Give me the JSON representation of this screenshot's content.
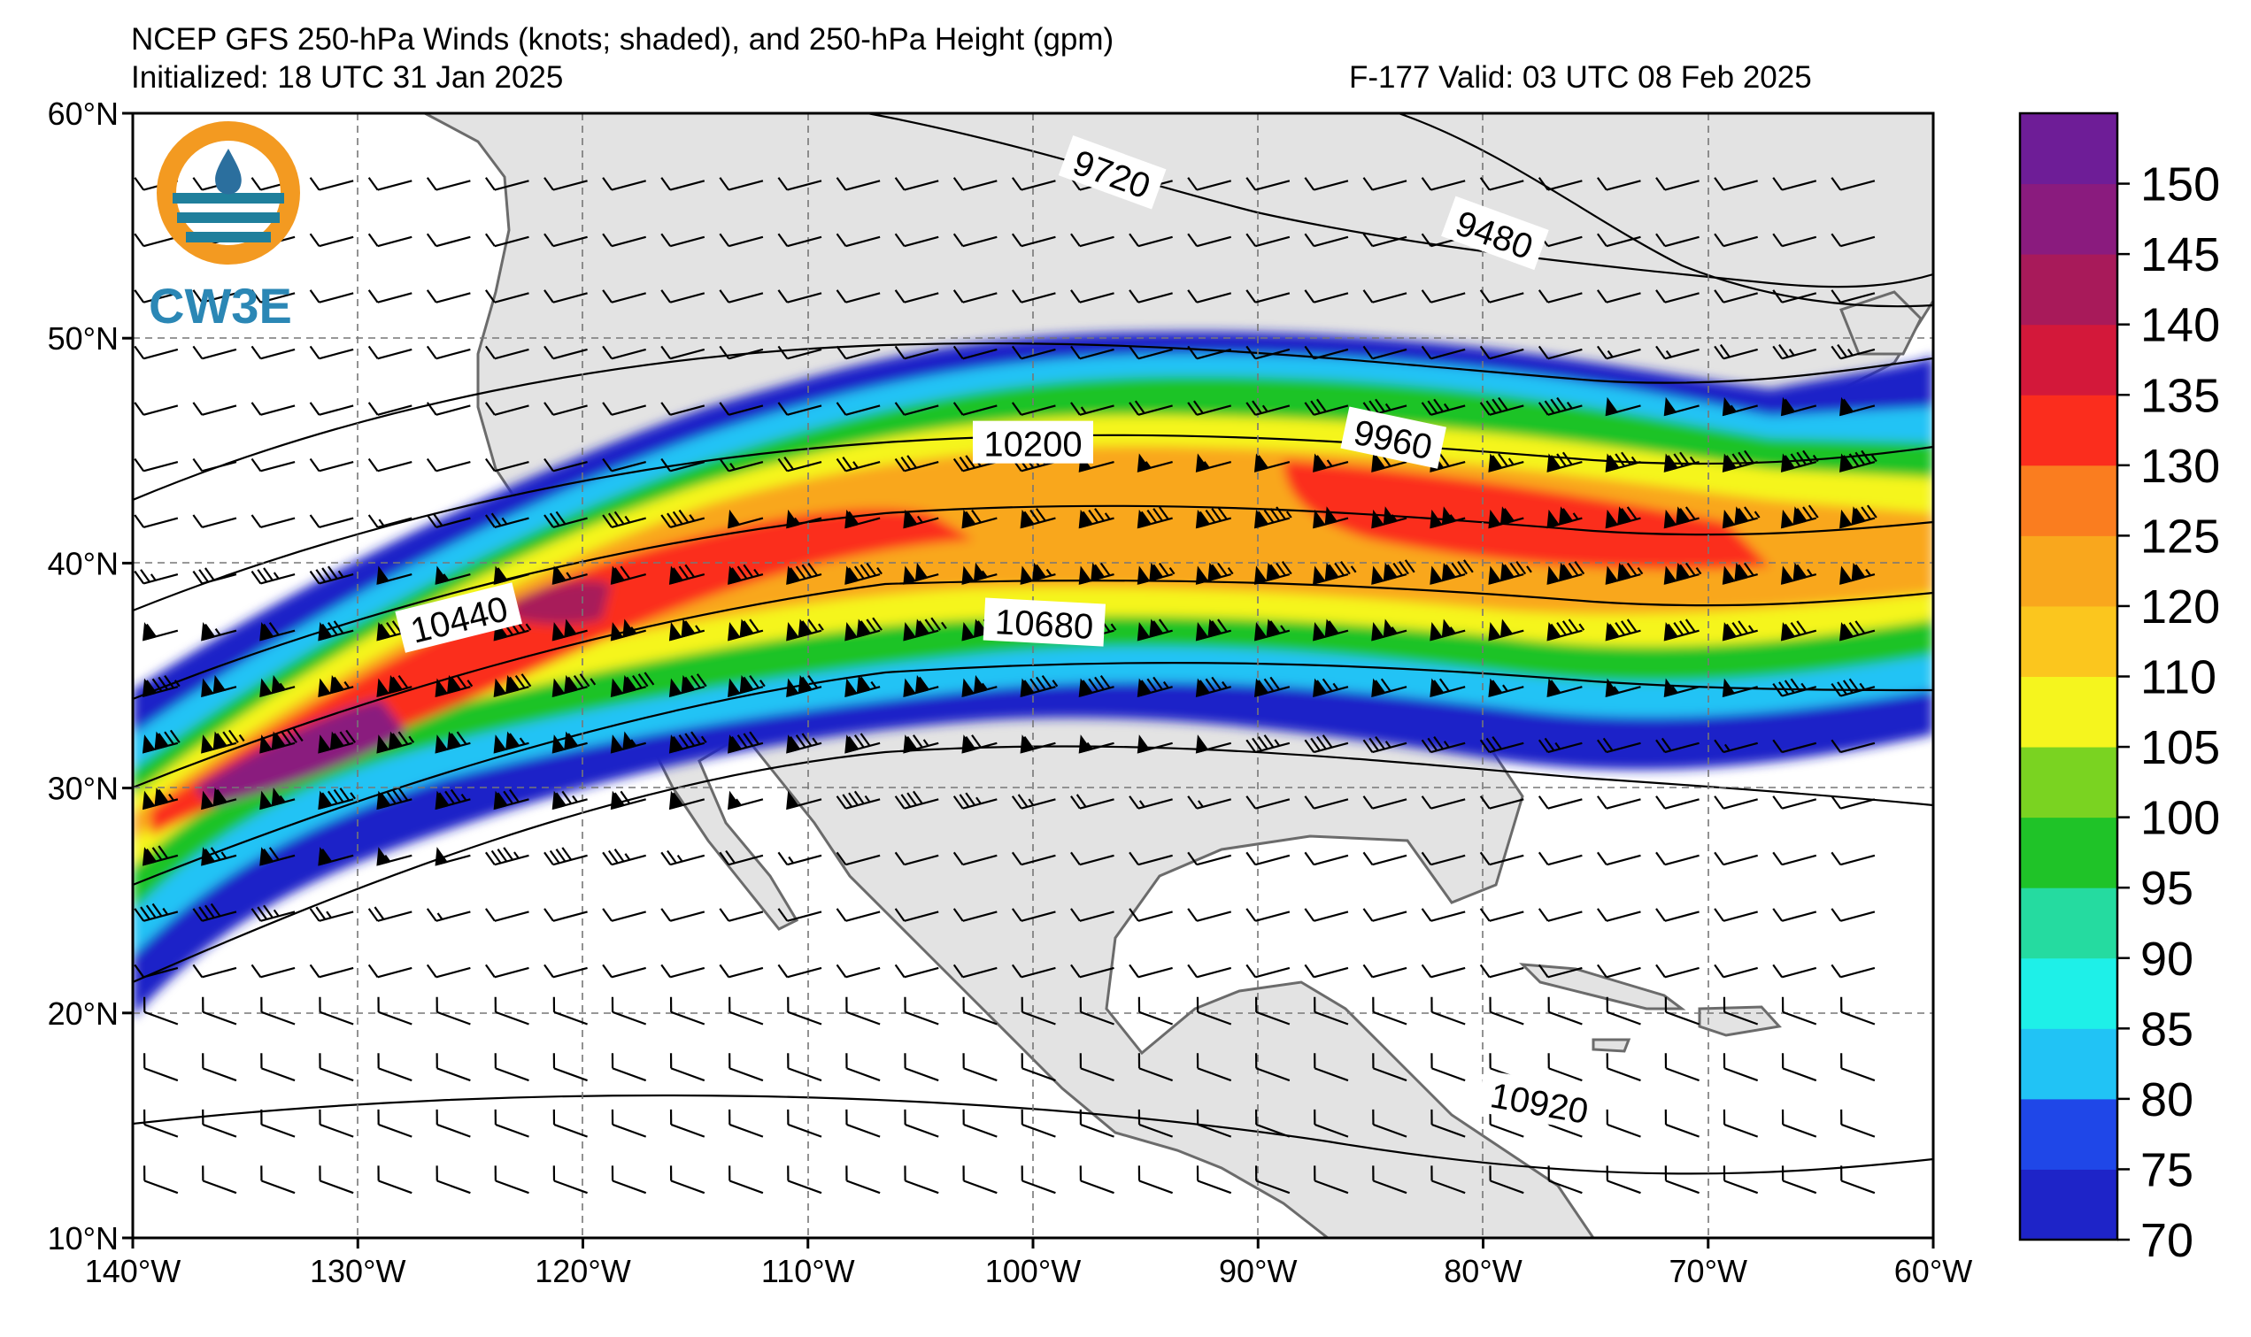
{
  "header": {
    "title": "NCEP GFS 250-hPa Winds (knots; shaded), and 250-hPa Height (gpm)",
    "initialized": "Initialized: 18 UTC 31 Jan 2025",
    "valid": "F-177  Valid: 03 UTC 08 Feb 2025"
  },
  "logo": {
    "text": "CW3E",
    "colors": {
      "orange": "#f39a21",
      "teal": "#1f7f9c",
      "blue": "#2b6f9e"
    }
  },
  "map": {
    "lon_range": [
      -140,
      -60
    ],
    "lat_range": [
      10,
      60
    ],
    "lon_ticks": [
      "140°W",
      "130°W",
      "120°W",
      "110°W",
      "100°W",
      "90°W",
      "80°W",
      "70°W",
      "60°W"
    ],
    "lat_ticks": [
      "60°N",
      "50°N",
      "40°N",
      "30°N",
      "20°N",
      "10°N"
    ],
    "grid": "dashed",
    "land_color": "#e3e3e3",
    "coast_color": "#6b6b6b"
  },
  "contours": {
    "labels": [
      {
        "text": "9720",
        "lon": -96.5,
        "lat": 57.3,
        "angle": 20
      },
      {
        "text": "9480",
        "lon": -79.5,
        "lat": 54.6,
        "angle": 20
      },
      {
        "text": "10200",
        "lon": -100.0,
        "lat": 45.3,
        "angle": 0
      },
      {
        "text": "9960",
        "lon": -84.0,
        "lat": 45.5,
        "angle": 12
      },
      {
        "text": "10440",
        "lon": -125.5,
        "lat": 37.5,
        "angle": -14
      },
      {
        "text": "10680",
        "lon": -99.5,
        "lat": 37.3,
        "angle": 3
      },
      {
        "text": "10920",
        "lon": -77.5,
        "lat": 16.0,
        "angle": 10
      }
    ]
  },
  "colorbar": {
    "ticks": [
      "70",
      "75",
      "80",
      "85",
      "90",
      "95",
      "100",
      "105",
      "110",
      "120",
      "125",
      "130",
      "135",
      "140",
      "145",
      "150"
    ],
    "bins": [
      {
        "from": 70,
        "to": 75,
        "color": "#1e24c8"
      },
      {
        "from": 75,
        "to": 80,
        "color": "#1f47e8"
      },
      {
        "from": 80,
        "to": 85,
        "color": "#21c3f5"
      },
      {
        "from": 85,
        "to": 90,
        "color": "#1ef0e8"
      },
      {
        "from": 90,
        "to": 95,
        "color": "#25dba0"
      },
      {
        "from": 95,
        "to": 100,
        "color": "#1fc328"
      },
      {
        "from": 100,
        "to": 105,
        "color": "#7ad321"
      },
      {
        "from": 105,
        "to": 110,
        "color": "#f5f51e"
      },
      {
        "from": 110,
        "to": 120,
        "color": "#fbc61e"
      },
      {
        "from": 120,
        "to": 125,
        "color": "#f9a71d"
      },
      {
        "from": 125,
        "to": 130,
        "color": "#fa7d1f"
      },
      {
        "from": 130,
        "to": 135,
        "color": "#fb2d1d"
      },
      {
        "from": 135,
        "to": 140,
        "color": "#d3183a"
      },
      {
        "from": 140,
        "to": 145,
        "color": "#a81a5a"
      },
      {
        "from": 145,
        "to": 150,
        "color": "#8a1b7e"
      },
      {
        "from": 150,
        "to": 155,
        "color": "#6e1d97"
      }
    ]
  }
}
